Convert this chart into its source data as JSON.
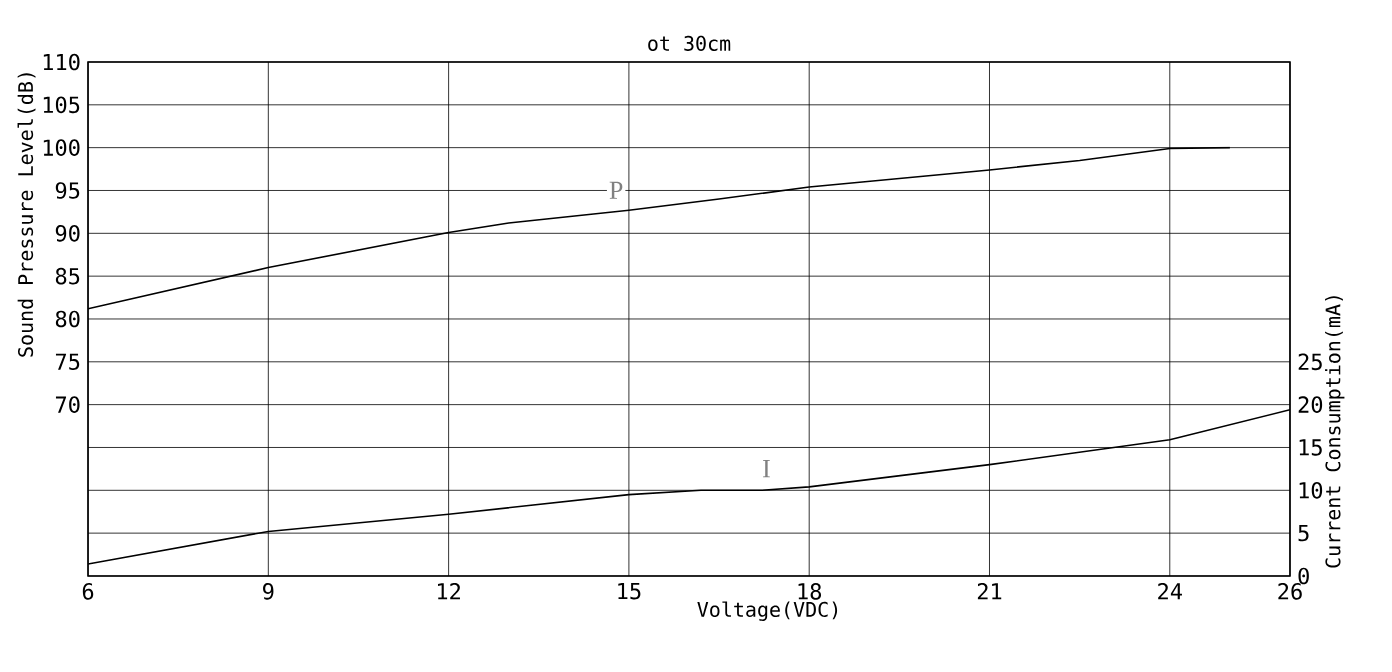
{
  "chart_data": {
    "type": "line",
    "title": "ot 30cm",
    "xlabel": "Voltage(VDC)",
    "ylabel": "Sound Pressure Level(dB)",
    "y2label": "Current Consumption(mA)",
    "xlim": [
      6,
      26
    ],
    "xticks": [
      6,
      9,
      12,
      15,
      18,
      21,
      24,
      26
    ],
    "ylim": [
      50,
      110
    ],
    "yticks": [
      {
        "value": 50,
        "label": null
      },
      {
        "value": 55,
        "label": null
      },
      {
        "value": 60,
        "label": null
      },
      {
        "value": 65,
        "label": null
      },
      70,
      75,
      80,
      85,
      90,
      95,
      100,
      105,
      110
    ],
    "y2lim": [
      0,
      60
    ],
    "y2ticks": [
      0,
      5,
      10,
      15,
      20,
      25
    ],
    "grid": true,
    "marker": "none",
    "line_style": "solid",
    "series": [
      {
        "name": "P",
        "color": "#000000",
        "x": [
          6,
          9,
          12,
          13,
          15,
          16.5,
          18,
          21,
          22.5,
          24,
          25
        ],
        "values": [
          81.2,
          86,
          90.1,
          91.2,
          92.7,
          94,
          95.4,
          97.4,
          98.5,
          99.9,
          100
        ]
      },
      {
        "name": "I",
        "color": "#000000",
        "axis": "y2",
        "x": [
          6,
          9,
          12,
          15,
          16.2,
          17.2,
          18,
          21,
          24,
          26
        ],
        "values": [
          1.4,
          5.2,
          7.2,
          9.5,
          10,
          10,
          10.4,
          13,
          15.9,
          19.4
        ]
      }
    ]
  }
}
